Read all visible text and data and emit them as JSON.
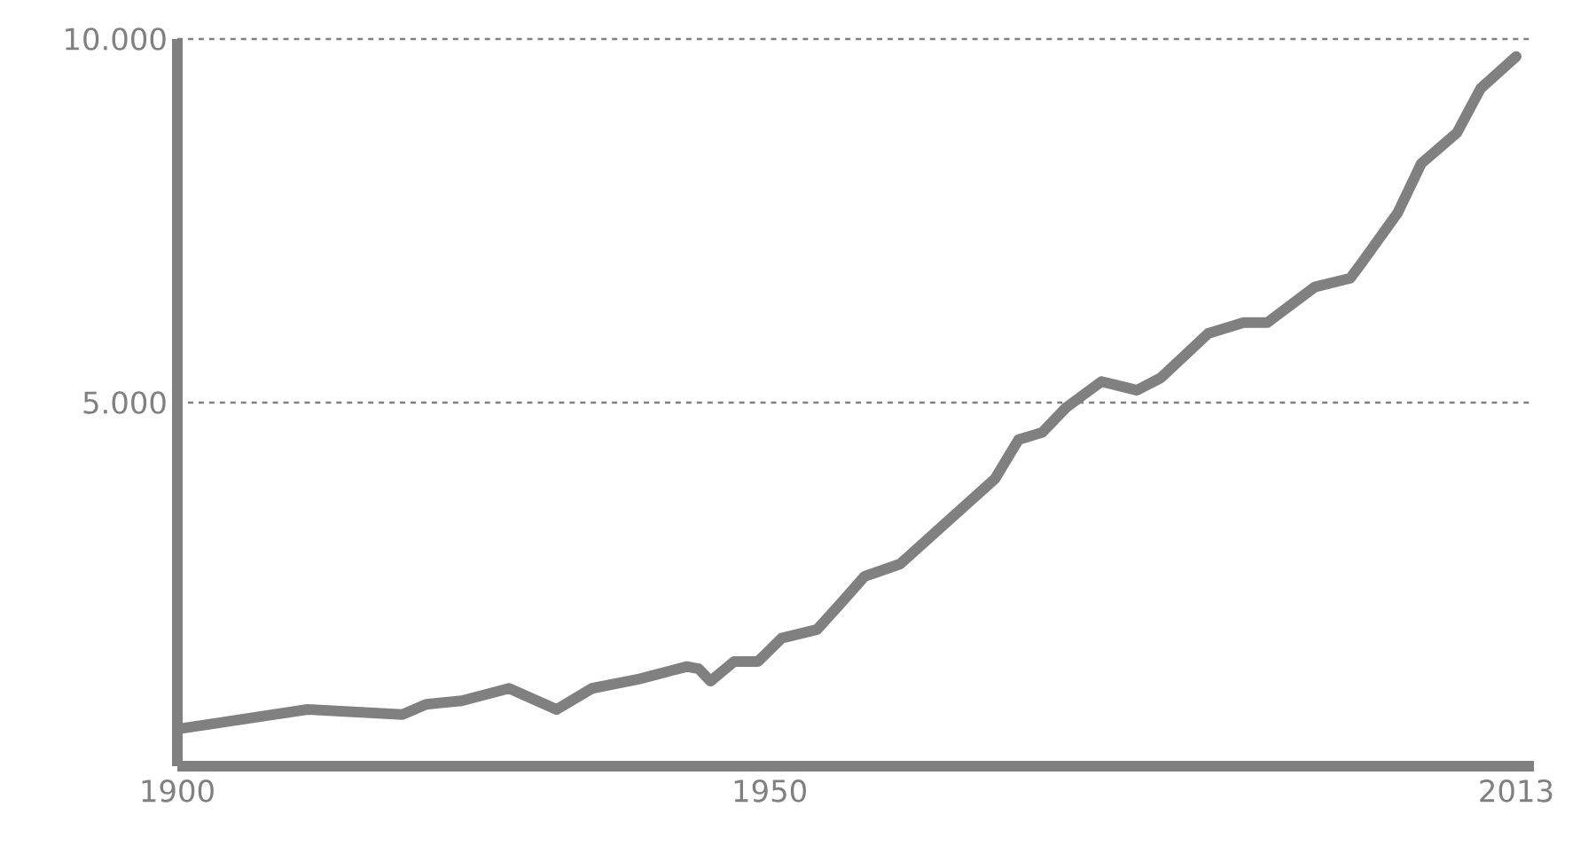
{
  "chart_data": {
    "type": "line",
    "color": "#808080",
    "x": [
      1900,
      1911,
      1919,
      1921,
      1924,
      1928,
      1932,
      1935,
      1939,
      1943,
      1944,
      1945,
      1947,
      1949,
      1951,
      1954,
      1956,
      1958,
      1961,
      1964,
      1969,
      1971,
      1973,
      1975,
      1978,
      1981,
      1983,
      1987,
      1990,
      1992,
      1996,
      1999,
      2000,
      2003,
      2005,
      2008,
      2010,
      2013
    ],
    "values": [
      510,
      780,
      710,
      850,
      900,
      1070,
      780,
      1070,
      1200,
      1370,
      1340,
      1170,
      1440,
      1440,
      1760,
      1880,
      2240,
      2610,
      2780,
      3220,
      3950,
      4490,
      4590,
      4930,
      5290,
      5170,
      5340,
      5950,
      6100,
      6100,
      6590,
      6710,
      6930,
      7610,
      8290,
      8710,
      9320,
      9760
    ],
    "xlim": [
      1900,
      2014.5
    ],
    "ylim": [
      0,
      10000
    ],
    "xticks": [
      {
        "value": 1900,
        "label": "1900"
      },
      {
        "value": 1950,
        "label": "1950"
      },
      {
        "value": 2013,
        "label": "2013"
      }
    ],
    "yticks": [
      {
        "value": 5000,
        "label": "5.000"
      },
      {
        "value": 10000,
        "label": "10.000"
      }
    ],
    "grid": "y",
    "marker": "none",
    "line_style": "solid"
  }
}
